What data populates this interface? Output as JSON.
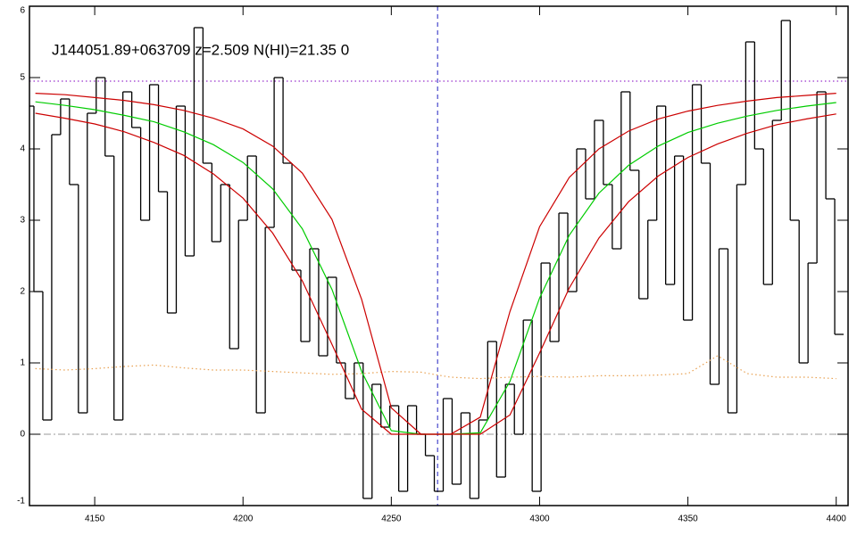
{
  "chart_data": {
    "type": "spectrum",
    "title": "J144051.89+063709 z=2.509 N(HI)=21.35 0",
    "xlim": [
      4128,
      4404
    ],
    "ylim": [
      -1,
      6
    ],
    "xticks": [
      4150,
      4200,
      4250,
      4300,
      4350,
      4400
    ],
    "yticks": [
      -1,
      0,
      1,
      2,
      3,
      4,
      5,
      6
    ],
    "hlines": [
      {
        "value": 4.95,
        "color": "#8000c0",
        "style": "dotted"
      },
      {
        "value": 0,
        "color": "#999999",
        "style": "dashdot"
      }
    ],
    "vlines": [
      {
        "value": 4265.6,
        "color": "#2020c0",
        "style": "dashed"
      }
    ],
    "series": [
      {
        "color": "#000000",
        "style": "step",
        "x": [
          4128,
          4131,
          4134,
          4137,
          4140,
          4143,
          4146,
          4149,
          4152,
          4155,
          4158,
          4161,
          4164,
          4167,
          4170,
          4173,
          4176,
          4179,
          4182,
          4185,
          4188,
          4191,
          4194,
          4197,
          4200,
          4203,
          4206,
          4209,
          4212,
          4215,
          4218,
          4221,
          4224,
          4227,
          4230,
          4233,
          4236,
          4239,
          4242,
          4245,
          4248,
          4251,
          4254,
          4257,
          4260,
          4263,
          4266,
          4269,
          4272,
          4275,
          4278,
          4281,
          4284,
          4287,
          4290,
          4293,
          4296,
          4299,
          4302,
          4305,
          4308,
          4311,
          4314,
          4317,
          4320,
          4323,
          4326,
          4329,
          4332,
          4335,
          4338,
          4341,
          4344,
          4347,
          4350,
          4353,
          4356,
          4359,
          4362,
          4365,
          4368,
          4371,
          4374,
          4377,
          4380,
          4383,
          4386,
          4389,
          4392,
          4395,
          4398,
          4401
        ],
        "values": [
          4.6,
          2.0,
          0.2,
          4.2,
          4.7,
          3.5,
          0.3,
          4.5,
          5.0,
          3.9,
          0.2,
          4.8,
          4.3,
          3.0,
          4.9,
          3.4,
          1.7,
          4.6,
          2.5,
          5.7,
          3.8,
          2.7,
          3.5,
          1.2,
          3.0,
          3.9,
          0.3,
          2.9,
          5.0,
          3.8,
          2.3,
          1.3,
          2.6,
          1.1,
          2.2,
          1.0,
          0.5,
          1.0,
          -0.9,
          0.7,
          0.1,
          0.4,
          -0.8,
          0.4,
          0.0,
          -0.3,
          -0.8,
          0.5,
          -0.7,
          0.3,
          -0.9,
          0.2,
          1.3,
          -0.6,
          0.7,
          0.0,
          1.6,
          -0.8,
          2.4,
          1.3,
          3.1,
          2.0,
          4.0,
          3.3,
          4.4,
          3.5,
          2.6,
          4.8,
          3.7,
          1.9,
          3.0,
          4.6,
          2.1,
          3.9,
          1.6,
          4.9,
          3.8,
          0.7,
          2.6,
          0.3,
          3.5,
          5.5,
          4.0,
          2.1,
          4.4,
          5.8,
          3.0,
          1.0,
          2.4,
          4.8,
          3.3,
          1.4
        ]
      },
      {
        "color": "#e8a050",
        "style": "dotted",
        "x": [
          4130,
          4140,
          4150,
          4160,
          4170,
          4180,
          4190,
          4200,
          4210,
          4220,
          4230,
          4240,
          4250,
          4260,
          4270,
          4280,
          4290,
          4300,
          4310,
          4320,
          4330,
          4340,
          4350,
          4360,
          4370,
          4380,
          4390,
          4400
        ],
        "values": [
          0.92,
          0.9,
          0.92,
          0.95,
          0.97,
          0.93,
          0.9,
          0.9,
          0.88,
          0.86,
          0.84,
          0.85,
          0.88,
          0.87,
          0.8,
          0.78,
          0.8,
          0.81,
          0.8,
          0.82,
          0.82,
          0.83,
          0.85,
          1.1,
          0.85,
          0.8,
          0.8,
          0.78
        ]
      },
      {
        "color": "#00cc00",
        "style": "solid",
        "x": [
          4130,
          4140,
          4150,
          4160,
          4170,
          4180,
          4190,
          4200,
          4210,
          4220,
          4230,
          4240,
          4250,
          4260,
          4270,
          4280,
          4290,
          4300,
          4310,
          4320,
          4330,
          4340,
          4350,
          4360,
          4370,
          4380,
          4390,
          4400
        ],
        "values": [
          4.66,
          4.61,
          4.55,
          4.47,
          4.38,
          4.24,
          4.06,
          3.81,
          3.44,
          2.88,
          2.03,
          0.88,
          0.05,
          0,
          0,
          0.02,
          0.74,
          1.91,
          2.79,
          3.38,
          3.77,
          4.04,
          4.23,
          4.36,
          4.46,
          4.54,
          4.6,
          4.65
        ]
      },
      {
        "color": "#cc0000",
        "style": "solid",
        "x": [
          4130,
          4140,
          4150,
          4160,
          4170,
          4180,
          4190,
          4200,
          4210,
          4220,
          4230,
          4240,
          4250,
          4260,
          4270,
          4280,
          4290,
          4300,
          4310,
          4320,
          4330,
          4340,
          4350,
          4360,
          4370,
          4380,
          4390,
          4400
        ],
        "values": [
          4.78,
          4.76,
          4.72,
          4.68,
          4.62,
          4.54,
          4.43,
          4.28,
          4.04,
          3.66,
          3.01,
          1.89,
          0.37,
          0,
          0,
          0.24,
          1.72,
          2.91,
          3.6,
          4.0,
          4.25,
          4.42,
          4.53,
          4.61,
          4.67,
          4.72,
          4.75,
          4.78
        ]
      },
      {
        "color": "#cc0000",
        "style": "solid",
        "x": [
          4130,
          4140,
          4150,
          4160,
          4170,
          4180,
          4190,
          4200,
          4210,
          4220,
          4230,
          4240,
          4250,
          4260,
          4270,
          4280,
          4290,
          4300,
          4310,
          4320,
          4330,
          4340,
          4350,
          4360,
          4370,
          4380,
          4390,
          4400
        ],
        "values": [
          4.5,
          4.43,
          4.35,
          4.24,
          4.09,
          3.91,
          3.65,
          3.31,
          2.82,
          2.15,
          1.26,
          0.35,
          0.0,
          0,
          0,
          0,
          0.27,
          1.14,
          2.05,
          2.75,
          3.26,
          3.62,
          3.88,
          4.07,
          4.22,
          4.34,
          4.42,
          4.49
        ]
      }
    ]
  }
}
